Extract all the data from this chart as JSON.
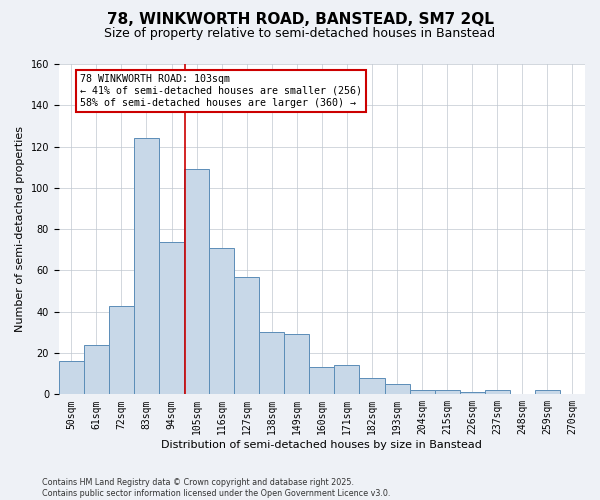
{
  "title": "78, WINKWORTH ROAD, BANSTEAD, SM7 2QL",
  "subtitle": "Size of property relative to semi-detached houses in Banstead",
  "xlabel": "Distribution of semi-detached houses by size in Banstead",
  "ylabel": "Number of semi-detached properties",
  "categories": [
    "50sqm",
    "61sqm",
    "72sqm",
    "83sqm",
    "94sqm",
    "105sqm",
    "116sqm",
    "127sqm",
    "138sqm",
    "149sqm",
    "160sqm",
    "171sqm",
    "182sqm",
    "193sqm",
    "204sqm",
    "215sqm",
    "226sqm",
    "237sqm",
    "248sqm",
    "259sqm",
    "270sqm"
  ],
  "values": [
    16,
    24,
    43,
    124,
    74,
    109,
    71,
    57,
    30,
    29,
    13,
    14,
    8,
    5,
    2,
    2,
    1,
    2,
    0,
    2,
    0
  ],
  "bar_color": "#c8d8e8",
  "bar_edge_color": "#5b8db8",
  "vline_bin_index": 4.545,
  "annotation_title": "78 WINKWORTH ROAD: 103sqm",
  "annotation_line1": "← 41% of semi-detached houses are smaller (256)",
  "annotation_line2": "58% of semi-detached houses are larger (360) →",
  "annotation_box_color": "#ffffff",
  "annotation_box_edge": "#cc0000",
  "vline_color": "#cc0000",
  "ylim": [
    0,
    160
  ],
  "yticks": [
    0,
    20,
    40,
    60,
    80,
    100,
    120,
    140,
    160
  ],
  "footnote1": "Contains HM Land Registry data © Crown copyright and database right 2025.",
  "footnote2": "Contains public sector information licensed under the Open Government Licence v3.0.",
  "background_color": "#eef1f6",
  "plot_bg_color": "#ffffff",
  "title_fontsize": 11,
  "subtitle_fontsize": 9,
  "tick_fontsize": 7,
  "label_fontsize": 8
}
